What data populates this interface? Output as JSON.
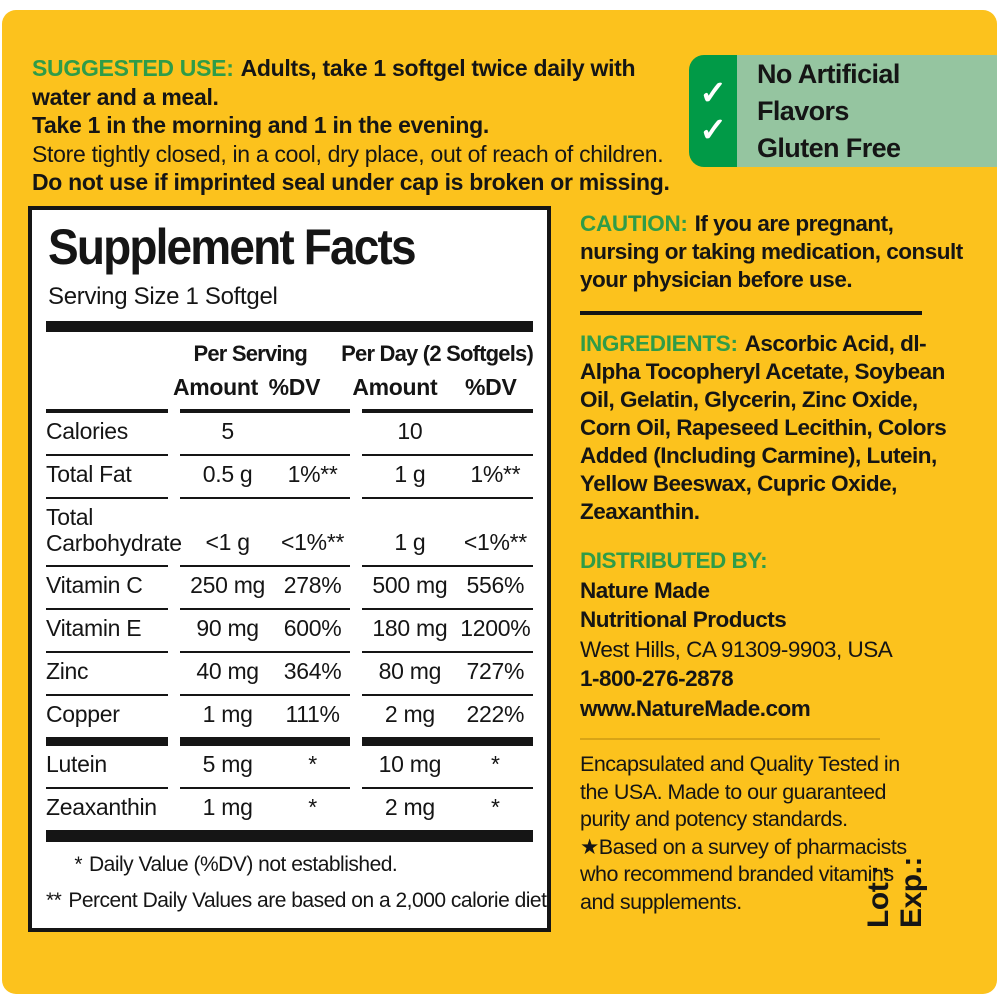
{
  "colors": {
    "label_bg": "#FCC21D",
    "heading_green": "#2F9C48",
    "badge_strip_green": "#019A47",
    "badge_body_green": "#95C5A0",
    "ink": "#151515"
  },
  "suggested_use": {
    "heading": "SUGGESTED USE:",
    "line1": "Adults, take 1 softgel twice daily with water and a meal.",
    "line2": "Take 1 in the morning and 1 in the evening.",
    "line3": "Store tightly closed, in a cool, dry place, out of reach of children.",
    "line4": "Do not use if imprinted seal under cap is broken or missing."
  },
  "badges": {
    "check": "✓",
    "items": [
      {
        "label": "No Artificial Flavors"
      },
      {
        "label": "Gluten Free"
      }
    ]
  },
  "supplement_facts": {
    "title": "Supplement Facts",
    "serving_size": "Serving Size 1 Softgel",
    "col_group_serving": "Per Serving",
    "col_group_day": "Per Day (2 Softgels)",
    "col_amount": "Amount",
    "col_dv": "%DV",
    "rows": [
      {
        "name": "Calories",
        "ps_amount": "5",
        "ps_dv": "",
        "pd_amount": "10",
        "pd_dv": ""
      },
      {
        "name": "Total Fat",
        "ps_amount": "0.5 g",
        "ps_dv": "1%**",
        "pd_amount": "1 g",
        "pd_dv": "1%**"
      },
      {
        "name": "Total Carbohydrate",
        "ps_amount": "<1 g",
        "ps_dv": "<1%**",
        "pd_amount": "1 g",
        "pd_dv": "<1%**"
      },
      {
        "name": "Vitamin C",
        "ps_amount": "250 mg",
        "ps_dv": "278%",
        "pd_amount": "500 mg",
        "pd_dv": "556%"
      },
      {
        "name": "Vitamin E",
        "ps_amount": "90 mg",
        "ps_dv": "600%",
        "pd_amount": "180 mg",
        "pd_dv": "1200%"
      },
      {
        "name": "Zinc",
        "ps_amount": "40 mg",
        "ps_dv": "364%",
        "pd_amount": "80 mg",
        "pd_dv": "727%"
      },
      {
        "name": "Copper",
        "ps_amount": "1 mg",
        "ps_dv": "111%",
        "pd_amount": "2 mg",
        "pd_dv": "222%"
      },
      {
        "name": "Lutein",
        "ps_amount": "5 mg",
        "ps_dv": "*",
        "pd_amount": "10 mg",
        "pd_dv": "*"
      },
      {
        "name": "Zeaxanthin",
        "ps_amount": "1 mg",
        "ps_dv": "*",
        "pd_amount": "2 mg",
        "pd_dv": "*"
      }
    ],
    "footnote1_mark": "*",
    "footnote1": "Daily Value (%DV) not established.",
    "footnote2_mark": "**",
    "footnote2": "Percent Daily Values are based on a 2,000 calorie diet"
  },
  "caution": {
    "heading": "CAUTION:",
    "text": "If you are pregnant, nursing or taking medication, consult your physician before use."
  },
  "ingredients": {
    "heading": "INGREDIENTS:",
    "text": "Ascorbic Acid, dl-Alpha Tocopheryl Acetate, Soybean Oil, Gelatin, Glycerin, Zinc Oxide, Corn Oil, Rapeseed Lecithin, Colors Added (Including Carmine), Lutein, Yellow Beeswax, Cupric Oxide, Zeaxanthin."
  },
  "distributed_by": {
    "heading": "DISTRIBUTED BY:",
    "company_line1": "Nature Made",
    "company_line2": "Nutritional Products",
    "address": "West Hills, CA 91309-9903, USA",
    "phone": "1-800-276-2878",
    "website": "www.NatureMade.com"
  },
  "quality": {
    "text1": "Encapsulated and Quality Tested in the USA. Made to our guaranteed purity and potency standards.",
    "star": "★",
    "text2": "Based on a survey of pharmacists who recommend branded vitamins and supplements."
  },
  "lot_exp": {
    "lot": "Lot :",
    "exp": "Exp.:"
  }
}
